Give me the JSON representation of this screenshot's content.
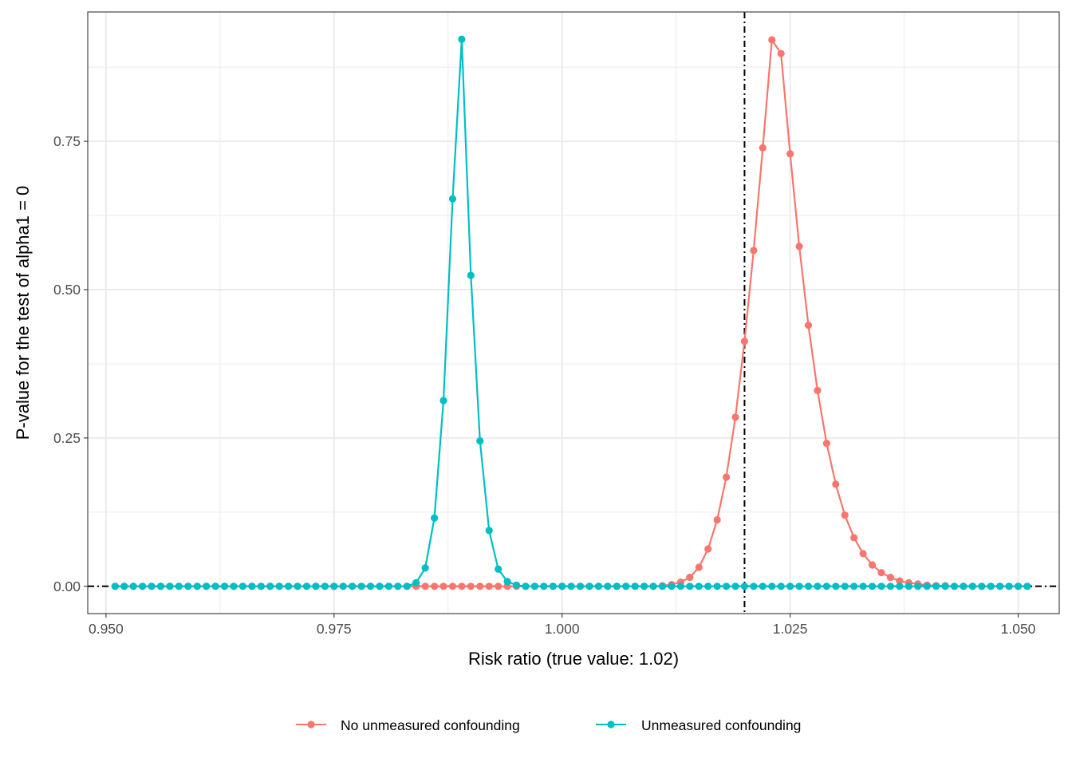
{
  "chart_data": {
    "type": "line",
    "xlabel": "Risk ratio (true value: 1.02)",
    "ylabel": "P-value for the test of alpha1 = 0",
    "xlim": [
      0.948,
      1.0545
    ],
    "ylim": [
      -0.046,
      0.968
    ],
    "x_ticks": [
      0.95,
      0.975,
      1.0,
      1.025,
      1.05
    ],
    "x_tick_labels": [
      "0.950",
      "0.975",
      "1.000",
      "1.025",
      "1.050"
    ],
    "y_ticks": [
      0.0,
      0.25,
      0.5,
      0.75
    ],
    "y_tick_labels": [
      "0.00",
      "0.25",
      "0.50",
      "0.75"
    ],
    "grid": true,
    "legend_position": "bottom",
    "reference_lines": {
      "vertical_x": 1.02,
      "horizontal_y": 0.0,
      "style": "dot-dash",
      "color": "#000000"
    },
    "x": [
      0.951,
      0.952,
      0.953,
      0.954,
      0.955,
      0.956,
      0.957,
      0.958,
      0.959,
      0.96,
      0.961,
      0.962,
      0.963,
      0.964,
      0.965,
      0.966,
      0.967,
      0.968,
      0.969,
      0.97,
      0.971,
      0.972,
      0.973,
      0.974,
      0.975,
      0.976,
      0.977,
      0.978,
      0.979,
      0.98,
      0.981,
      0.982,
      0.983,
      0.984,
      0.985,
      0.986,
      0.987,
      0.988,
      0.989,
      0.99,
      0.991,
      0.992,
      0.993,
      0.994,
      0.995,
      0.996,
      0.997,
      0.998,
      0.999,
      1.0,
      1.001,
      1.002,
      1.003,
      1.004,
      1.005,
      1.006,
      1.007,
      1.008,
      1.009,
      1.01,
      1.011,
      1.012,
      1.013,
      1.014,
      1.015,
      1.016,
      1.017,
      1.018,
      1.019,
      1.02,
      1.021,
      1.022,
      1.023,
      1.024,
      1.025,
      1.026,
      1.027,
      1.028,
      1.029,
      1.03,
      1.031,
      1.032,
      1.033,
      1.034,
      1.035,
      1.036,
      1.037,
      1.038,
      1.039,
      1.04,
      1.041,
      1.042,
      1.043,
      1.044,
      1.045,
      1.046,
      1.047,
      1.048,
      1.049,
      1.05,
      1.051
    ],
    "series": [
      {
        "name": "No unmeasured confounding",
        "color": "#F8766D",
        "values": [
          0,
          0,
          0,
          0,
          0,
          0,
          0,
          0,
          0,
          0,
          0,
          0,
          0,
          0,
          0,
          0,
          0,
          0,
          0,
          0,
          0,
          0,
          0,
          0,
          0,
          0,
          0,
          0,
          0,
          0,
          0,
          0,
          0,
          0,
          0,
          0,
          0,
          0,
          0,
          0,
          0,
          0,
          0,
          0,
          0,
          0,
          0,
          0,
          0,
          0,
          0,
          0,
          0,
          0,
          0,
          0,
          0,
          0,
          0,
          0,
          0.001,
          0.003,
          0.007,
          0.015,
          0.032,
          0.063,
          0.112,
          0.184,
          0.285,
          0.413,
          0.566,
          0.739,
          0.921,
          0.898,
          0.729,
          0.573,
          0.44,
          0.33,
          0.241,
          0.172,
          0.12,
          0.082,
          0.055,
          0.036,
          0.023,
          0.015,
          0.009,
          0.006,
          0.004,
          0.002,
          0.001,
          0.001,
          0,
          0,
          0,
          0,
          0,
          0,
          0,
          0,
          0
        ]
      },
      {
        "name": "Unmeasured confounding",
        "color": "#00BFC4",
        "values": [
          0,
          0,
          0,
          0,
          0,
          0,
          0,
          0,
          0,
          0,
          0,
          0,
          0,
          0,
          0,
          0,
          0,
          0,
          0,
          0,
          0,
          0,
          0,
          0,
          0,
          0,
          0,
          0,
          0,
          0,
          0,
          0,
          0,
          0.006,
          0.031,
          0.115,
          0.313,
          0.653,
          0.922,
          0.524,
          0.245,
          0.094,
          0.029,
          0.008,
          0.002,
          0,
          0,
          0,
          0,
          0,
          0,
          0,
          0,
          0,
          0,
          0,
          0,
          0,
          0,
          0,
          0,
          0,
          0,
          0,
          0,
          0,
          0,
          0,
          0,
          0,
          0,
          0,
          0,
          0,
          0,
          0,
          0,
          0,
          0,
          0,
          0,
          0,
          0,
          0,
          0,
          0,
          0,
          0,
          0,
          0,
          0,
          0,
          0,
          0,
          0,
          0,
          0,
          0,
          0,
          0,
          0
        ]
      }
    ]
  }
}
